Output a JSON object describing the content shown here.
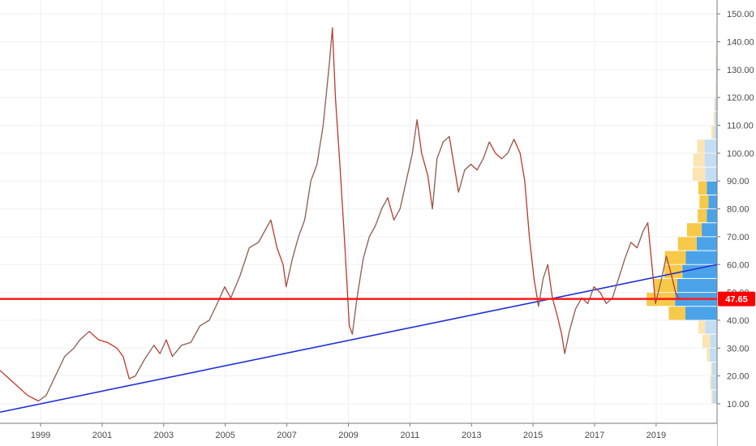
{
  "chart_data": {
    "type": "line",
    "title": "",
    "xlabel": "",
    "ylabel": "",
    "x_tick_labels": [
      "1999",
      "2001",
      "2003",
      "2005",
      "2007",
      "2009",
      "2011",
      "2013",
      "2015",
      "2017",
      "2019"
    ],
    "y_tick_labels": [
      "10.00",
      "20.00",
      "30.00",
      "40.00",
      "50.00",
      "60.00",
      "70.00",
      "80.00",
      "90.00",
      "100.00",
      "110.00",
      "120.00",
      "130.00",
      "140.00",
      "150.00"
    ],
    "xlim": [
      1997.7,
      2021.0
    ],
    "ylim": [
      3,
      155
    ],
    "grid": true,
    "colors": {
      "price": "#c0392b",
      "price_up": "#26a69a",
      "support_line": "#1f2fd6",
      "horizontal_line": "#ff1a1a",
      "price_badge": "#ff0000",
      "vp_up": "#f7c948",
      "vp_down": "#4aa3e8",
      "vp_up_light": "#fbe5b3",
      "vp_down_light": "#c3ddf3",
      "grid": "#eef0f3"
    },
    "series": [
      {
        "points": [
          [
            1997.7,
            22
          ],
          [
            1998.0,
            19
          ],
          [
            1998.3,
            16
          ],
          [
            1998.6,
            13
          ],
          [
            1998.95,
            11
          ],
          [
            1999.2,
            13
          ],
          [
            1999.5,
            20
          ],
          [
            1999.8,
            27
          ],
          [
            2000.1,
            30
          ],
          [
            2000.3,
            33
          ],
          [
            2000.6,
            36
          ],
          [
            2000.9,
            33
          ],
          [
            2001.2,
            32
          ],
          [
            2001.5,
            30
          ],
          [
            2001.7,
            27
          ],
          [
            2001.9,
            19
          ],
          [
            2002.1,
            20
          ],
          [
            2002.4,
            26
          ],
          [
            2002.7,
            31
          ],
          [
            2002.9,
            28
          ],
          [
            2003.1,
            33
          ],
          [
            2003.3,
            27
          ],
          [
            2003.6,
            31
          ],
          [
            2003.9,
            32
          ],
          [
            2004.2,
            38
          ],
          [
            2004.5,
            40
          ],
          [
            2004.8,
            47
          ],
          [
            2005.0,
            52
          ],
          [
            2005.2,
            48
          ],
          [
            2005.5,
            56
          ],
          [
            2005.8,
            66
          ],
          [
            2006.1,
            68
          ],
          [
            2006.3,
            72
          ],
          [
            2006.5,
            76
          ],
          [
            2006.7,
            66
          ],
          [
            2006.9,
            60
          ],
          [
            2007.0,
            52
          ],
          [
            2007.2,
            62
          ],
          [
            2007.4,
            70
          ],
          [
            2007.6,
            76
          ],
          [
            2007.8,
            90
          ],
          [
            2008.0,
            96
          ],
          [
            2008.2,
            110
          ],
          [
            2008.4,
            132
          ],
          [
            2008.5,
            145
          ],
          [
            2008.6,
            120
          ],
          [
            2008.75,
            95
          ],
          [
            2008.9,
            68
          ],
          [
            2009.05,
            38
          ],
          [
            2009.15,
            35
          ],
          [
            2009.3,
            48
          ],
          [
            2009.5,
            62
          ],
          [
            2009.7,
            70
          ],
          [
            2009.9,
            74
          ],
          [
            2010.1,
            80
          ],
          [
            2010.3,
            84
          ],
          [
            2010.5,
            76
          ],
          [
            2010.7,
            80
          ],
          [
            2010.9,
            90
          ],
          [
            2011.1,
            100
          ],
          [
            2011.25,
            112
          ],
          [
            2011.4,
            100
          ],
          [
            2011.6,
            92
          ],
          [
            2011.75,
            80
          ],
          [
            2011.9,
            98
          ],
          [
            2012.1,
            104
          ],
          [
            2012.3,
            106
          ],
          [
            2012.45,
            96
          ],
          [
            2012.6,
            86
          ],
          [
            2012.8,
            94
          ],
          [
            2013.0,
            96
          ],
          [
            2013.2,
            94
          ],
          [
            2013.4,
            98
          ],
          [
            2013.6,
            104
          ],
          [
            2013.8,
            100
          ],
          [
            2014.0,
            98
          ],
          [
            2014.2,
            100
          ],
          [
            2014.4,
            105
          ],
          [
            2014.6,
            100
          ],
          [
            2014.75,
            90
          ],
          [
            2014.9,
            70
          ],
          [
            2015.05,
            55
          ],
          [
            2015.2,
            45
          ],
          [
            2015.35,
            55
          ],
          [
            2015.5,
            60
          ],
          [
            2015.65,
            48
          ],
          [
            2015.8,
            42
          ],
          [
            2015.95,
            35
          ],
          [
            2016.05,
            28
          ],
          [
            2016.2,
            36
          ],
          [
            2016.4,
            44
          ],
          [
            2016.6,
            48
          ],
          [
            2016.8,
            46
          ],
          [
            2017.0,
            52
          ],
          [
            2017.2,
            50
          ],
          [
            2017.4,
            46
          ],
          [
            2017.6,
            48
          ],
          [
            2017.8,
            55
          ],
          [
            2018.0,
            62
          ],
          [
            2018.2,
            68
          ],
          [
            2018.4,
            66
          ],
          [
            2018.6,
            72
          ],
          [
            2018.75,
            75
          ],
          [
            2018.9,
            58
          ],
          [
            2019.0,
            46
          ],
          [
            2019.2,
            55
          ],
          [
            2019.35,
            63
          ],
          [
            2019.5,
            57
          ],
          [
            2019.65,
            50
          ],
          [
            2019.75,
            48
          ],
          [
            2019.85,
            47.65
          ]
        ]
      }
    ],
    "support_line": {
      "x": [
        1997.7,
        2021.0
      ],
      "y": [
        7,
        60
      ]
    },
    "horizontal_line": {
      "y": 47.65
    },
    "current_price_label": "47.65",
    "volume_profile": {
      "bin_size": 5,
      "bins": [
        {
          "from": 10,
          "to": 15,
          "up": 0.2,
          "down": 0.8,
          "light": true
        },
        {
          "from": 15,
          "to": 20,
          "up": 0.25,
          "down": 1.0,
          "light": true
        },
        {
          "from": 20,
          "to": 25,
          "up": 0.2,
          "down": 0.9,
          "light": true
        },
        {
          "from": 25,
          "to": 30,
          "up": 0.5,
          "down": 1.3,
          "light": true
        },
        {
          "from": 30,
          "to": 35,
          "up": 1.4,
          "down": 1.2,
          "light": true
        },
        {
          "from": 35,
          "to": 40,
          "up": 1.2,
          "down": 2.1,
          "light": true
        },
        {
          "from": 40,
          "to": 45,
          "up": 2.9,
          "down": 5.6,
          "light": false
        },
        {
          "from": 45,
          "to": 50,
          "up": 5.0,
          "down": 7.4,
          "light": false
        },
        {
          "from": 50,
          "to": 55,
          "up": 4.1,
          "down": 7.0,
          "light": false
        },
        {
          "from": 55,
          "to": 60,
          "up": 3.2,
          "down": 6.1,
          "light": false
        },
        {
          "from": 60,
          "to": 65,
          "up": 3.7,
          "down": 5.5,
          "light": false
        },
        {
          "from": 65,
          "to": 70,
          "up": 3.3,
          "down": 3.6,
          "light": false
        },
        {
          "from": 70,
          "to": 75,
          "up": 2.6,
          "down": 2.7,
          "light": false
        },
        {
          "from": 75,
          "to": 80,
          "up": 1.6,
          "down": 1.8,
          "light": false
        },
        {
          "from": 80,
          "to": 85,
          "up": 1.6,
          "down": 1.5,
          "light": false
        },
        {
          "from": 85,
          "to": 90,
          "up": 1.5,
          "down": 1.8,
          "light": false
        },
        {
          "from": 90,
          "to": 95,
          "up": 2.2,
          "down": 2.1,
          "light": true
        },
        {
          "from": 95,
          "to": 100,
          "up": 2.0,
          "down": 2.2,
          "light": true
        },
        {
          "from": 100,
          "to": 105,
          "up": 1.3,
          "down": 2.2,
          "light": true
        },
        {
          "from": 105,
          "to": 110,
          "up": 0.5,
          "down": 0.5,
          "light": true
        },
        {
          "from": 110,
          "to": 115,
          "up": 0.2,
          "down": 0.4,
          "light": true
        },
        {
          "from": 115,
          "to": 120,
          "up": 0.15,
          "down": 0.35,
          "light": true
        },
        {
          "from": 120,
          "to": 125,
          "up": 0.1,
          "down": 0.15,
          "light": true
        },
        {
          "from": 125,
          "to": 130,
          "up": 0.05,
          "down": 0.15,
          "light": true
        },
        {
          "from": 130,
          "to": 135,
          "up": 0.1,
          "down": 0.15,
          "light": true
        },
        {
          "from": 135,
          "to": 140,
          "up": 0.1,
          "down": 0.1,
          "light": true
        },
        {
          "from": 140,
          "to": 145,
          "up": 0.05,
          "down": 0.05,
          "light": true
        }
      ]
    }
  }
}
